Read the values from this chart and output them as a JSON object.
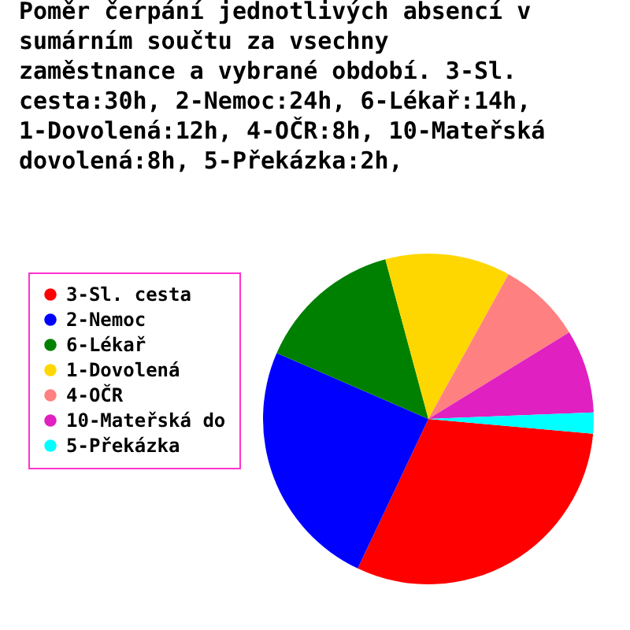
{
  "chart_data": {
    "type": "pie",
    "title": "Poměr čerpání jednotlivých absencí v sumárním součtu za vsechny zaměstnance a vybrané období. 3-Sl. cesta:30h, 2-Nemoc:24h, 6-Lékař:14h, 1-Dovolená:12h, 4-OČR:8h, 10-Mateřská dovolená:8h, 5-Překázka:2h,",
    "categories": [
      "3-Sl. cesta",
      "2-Nemoc",
      "6-Lékař",
      "1-Dovolená",
      "4-OČR",
      "10-Mateřská do",
      "5-Překázka"
    ],
    "values": [
      30,
      24,
      14,
      12,
      8,
      8,
      2
    ],
    "colors": [
      "#ff0000",
      "#0000ff",
      "#008000",
      "#ffd700",
      "#ff8080",
      "#e020c0",
      "#00ffff"
    ],
    "legend": "left"
  }
}
